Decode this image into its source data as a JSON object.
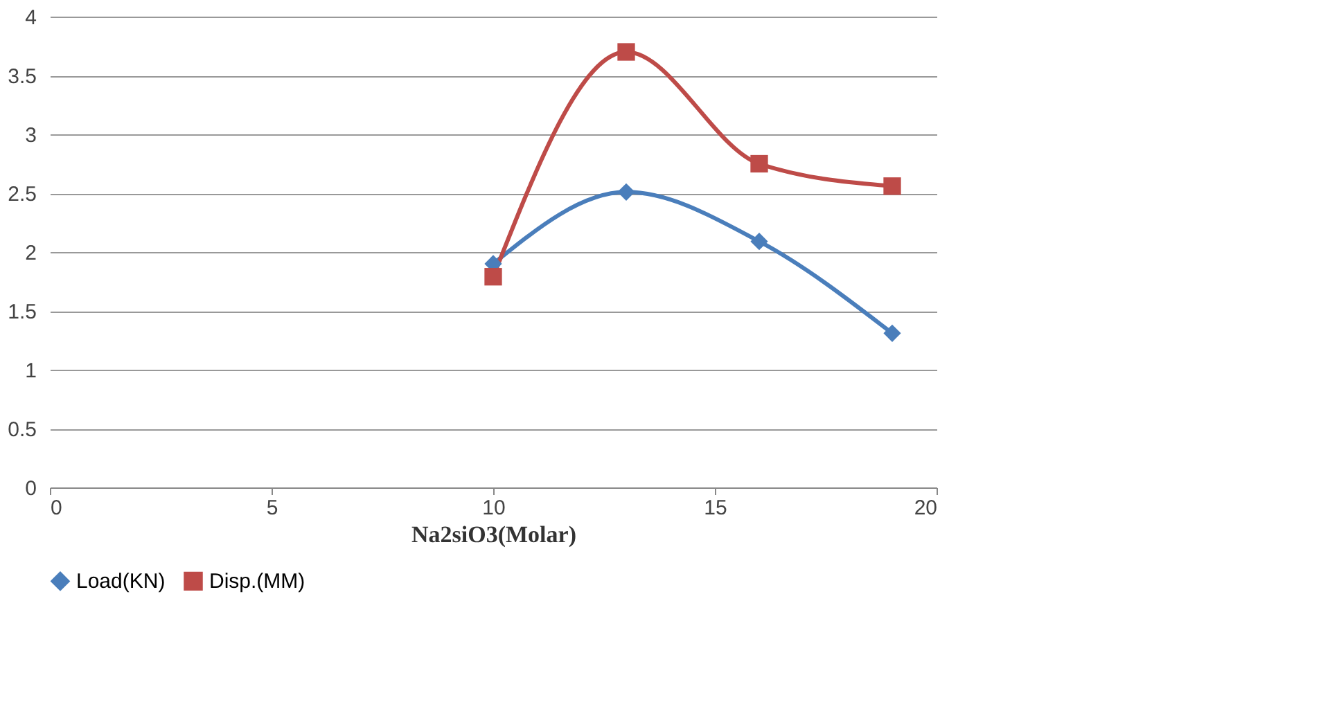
{
  "chart_data": {
    "type": "line",
    "xlabel": "Na2siO3(Molar)",
    "x": [
      10,
      13,
      16,
      19
    ],
    "series": [
      {
        "name": "Load(KN)",
        "color": "#4a7ebb",
        "marker": "diamond",
        "values": [
          1.9,
          2.51,
          2.09,
          1.31
        ]
      },
      {
        "name": "Disp.(MM)",
        "color": "#be4b48",
        "marker": "square",
        "values": [
          1.79,
          3.7,
          2.75,
          2.56
        ]
      }
    ],
    "xlim": [
      0,
      20
    ],
    "xticks": [
      0,
      5,
      10,
      15,
      20
    ],
    "ylim": [
      0,
      4
    ],
    "yticks": [
      0,
      0.5,
      1,
      1.5,
      2,
      2.5,
      3,
      3.5,
      4
    ],
    "grid": "y",
    "legend": "bottom",
    "line_style": "solid"
  }
}
